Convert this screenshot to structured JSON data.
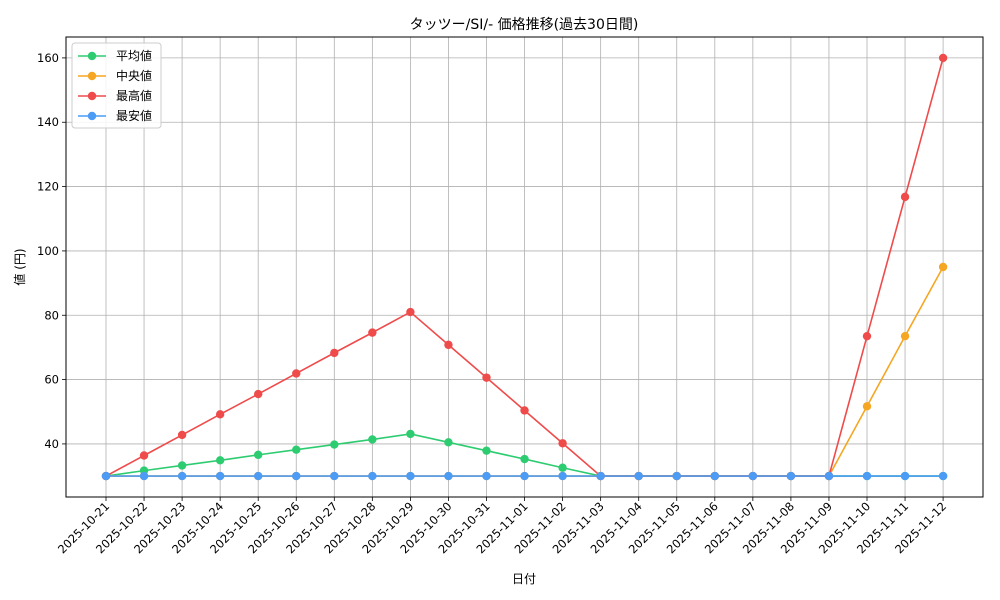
{
  "chart_data": {
    "type": "line",
    "title": "タッツー/SI/- 価格推移(過去30日間)",
    "xlabel": "日付",
    "ylabel": "値 (円)",
    "ylim": [
      23.5,
      166.5
    ],
    "yticks": [
      40,
      60,
      80,
      100,
      120,
      140,
      160
    ],
    "grid": true,
    "legend_position": "top-left",
    "x": [
      "2025-10-21",
      "2025-10-22",
      "2025-10-23",
      "2025-10-24",
      "2025-10-25",
      "2025-10-26",
      "2025-10-27",
      "2025-10-28",
      "2025-10-29",
      "2025-10-30",
      "2025-10-31",
      "2025-11-01",
      "2025-11-02",
      "2025-11-03",
      "2025-11-04",
      "2025-11-05",
      "2025-11-06",
      "2025-11-07",
      "2025-11-08",
      "2025-11-09",
      "2025-11-10",
      "2025-11-11",
      "2025-11-12"
    ],
    "series": [
      {
        "name": "平均値",
        "color": "#2ecc71",
        "values": [
          30,
          31.7,
          33.3,
          34.9,
          36.6,
          38.2,
          39.8,
          41.4,
          43.1,
          40.5,
          37.9,
          35.3,
          32.6,
          30,
          30,
          30,
          30,
          30,
          30,
          30,
          30,
          30,
          30
        ]
      },
      {
        "name": "中央値",
        "color": "#f5a623",
        "values": [
          30,
          30,
          30,
          30,
          30,
          30,
          30,
          30,
          30,
          30,
          30,
          30,
          30,
          30,
          30,
          30,
          30,
          30,
          30,
          30,
          51.7,
          73.5,
          95
        ]
      },
      {
        "name": "最高値",
        "color": "#ef4b4b",
        "values": [
          30,
          36.4,
          42.8,
          49.2,
          55.5,
          61.9,
          68.3,
          74.6,
          81,
          70.8,
          60.6,
          50.4,
          40.2,
          30,
          30,
          30,
          30,
          30,
          30,
          30,
          73.5,
          116.8,
          160
        ]
      },
      {
        "name": "最安値",
        "color": "#4c9bf5",
        "values": [
          30,
          30,
          30,
          30,
          30,
          30,
          30,
          30,
          30,
          30,
          30,
          30,
          30,
          30,
          30,
          30,
          30,
          30,
          30,
          30,
          30,
          30,
          30
        ]
      }
    ]
  }
}
